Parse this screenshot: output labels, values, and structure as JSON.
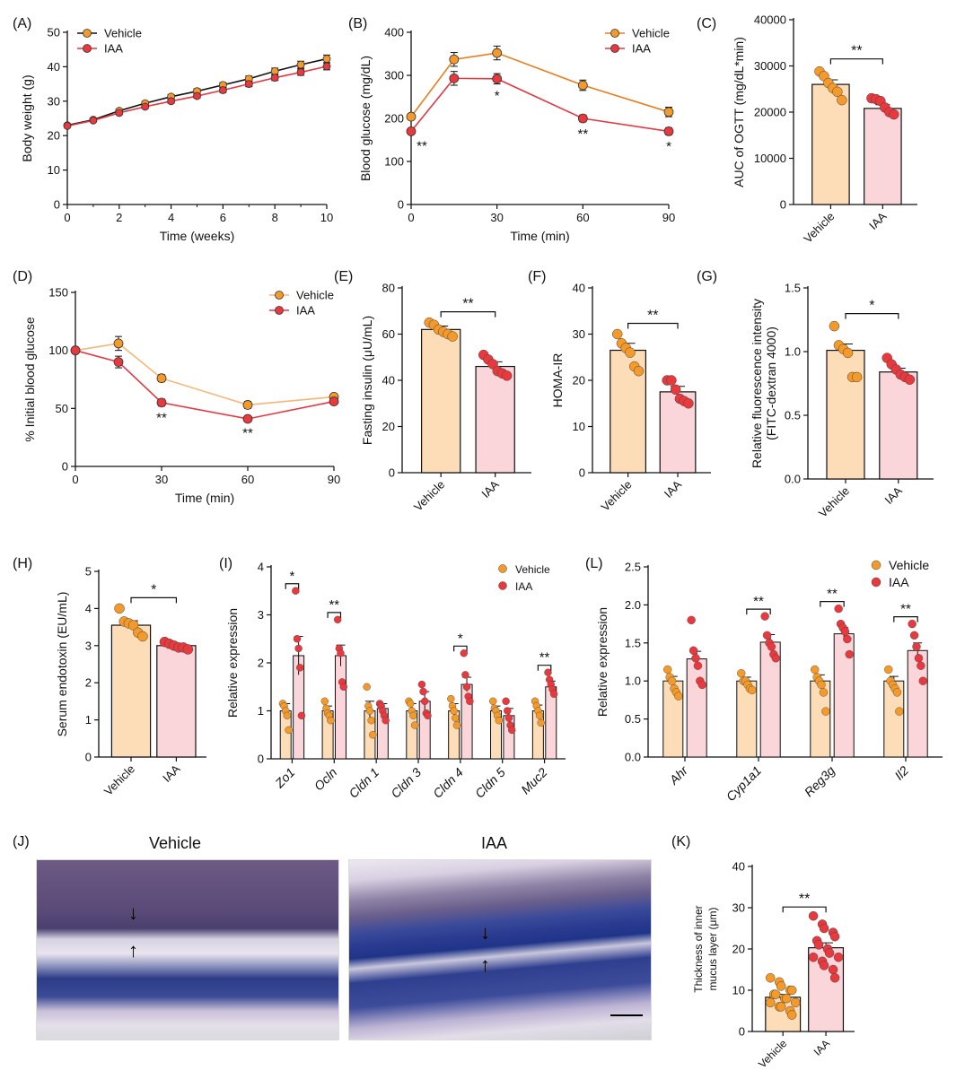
{
  "colors": {
    "vehicle_line": "#E87E1E",
    "vehicle_marker": "#F39A2B",
    "vehicle_bar": "#FDDCB8",
    "iaa_line": "#E03A45",
    "iaa_marker": "#E8393F",
    "iaa_bar": "#FAD6DA",
    "black": "#111111"
  },
  "legend": {
    "vehicle": "Vehicle",
    "iaa": "IAA"
  },
  "groups": {
    "vehicle": "Vehicle",
    "iaa": "IAA"
  },
  "panels": {
    "A": "(A)",
    "B": "(B)",
    "C": "(C)",
    "D": "(D)",
    "E": "(E)",
    "F": "(F)",
    "G": "(G)",
    "H": "(H)",
    "I": "(I)",
    "L": "(L)",
    "J": "(J)",
    "K": "(K)"
  },
  "histology": {
    "vehicle_title": "Vehicle",
    "iaa_title": "IAA"
  },
  "chart_data": [
    {
      "id": "A",
      "type": "line",
      "xlabel": "Time (weeks)",
      "ylabel": "Body weight (g)",
      "xlim": [
        0,
        10
      ],
      "ylim": [
        0,
        50
      ],
      "xticks": [
        0,
        2,
        4,
        6,
        8,
        10
      ],
      "yticks": [
        0,
        10,
        20,
        30,
        40,
        50
      ],
      "series": [
        {
          "name": "Vehicle",
          "x": [
            0,
            1,
            2,
            3,
            4,
            5,
            6,
            7,
            8,
            9,
            10
          ],
          "y": [
            23,
            24.6,
            27.2,
            29.4,
            31.3,
            32.9,
            34.7,
            36.5,
            38.7,
            40.6,
            42.3
          ],
          "err": [
            0.4,
            0.4,
            0.5,
            0.5,
            0.6,
            0.7,
            0.7,
            0.8,
            0.9,
            1.0,
            1.1
          ]
        },
        {
          "name": "IAA",
          "x": [
            0,
            1,
            2,
            3,
            4,
            5,
            6,
            7,
            8,
            9,
            10
          ],
          "y": [
            22.8,
            24.4,
            26.6,
            28.4,
            30,
            31.5,
            33.2,
            35,
            36.8,
            38.4,
            40.1
          ],
          "err": [
            0.4,
            0.4,
            0.5,
            0.5,
            0.6,
            0.6,
            0.7,
            0.8,
            0.8,
            0.9,
            1.0
          ]
        }
      ]
    },
    {
      "id": "B",
      "type": "line",
      "xlabel": "Time (min)",
      "ylabel": "Blood glucose (mg/dL)",
      "xlim": [
        0,
        90
      ],
      "ylim": [
        0,
        400
      ],
      "xticks": [
        0,
        30,
        60,
        90
      ],
      "yticks": [
        0,
        100,
        200,
        300,
        400
      ],
      "series": [
        {
          "name": "Vehicle",
          "x": [
            0,
            15,
            30,
            60,
            90
          ],
          "y": [
            204,
            337,
            352,
            277,
            215
          ],
          "err": [
            6,
            16,
            16,
            12,
            11
          ]
        },
        {
          "name": "IAA",
          "x": [
            0,
            15,
            30,
            60,
            90
          ],
          "y": [
            170,
            293,
            292,
            200,
            170
          ],
          "err": [
            6,
            16,
            12,
            8,
            8
          ]
        }
      ],
      "significance": [
        {
          "x": 0,
          "label": "**"
        },
        {
          "x": 30,
          "label": "*"
        },
        {
          "x": 60,
          "label": "**"
        },
        {
          "x": 90,
          "label": "*"
        }
      ]
    },
    {
      "id": "C",
      "type": "bar",
      "ylabel": "AUC of OGTT (mg/dL*min)",
      "ylim": [
        0,
        40000
      ],
      "yticks": [
        0,
        10000,
        20000,
        30000,
        40000
      ],
      "categories": [
        "Vehicle",
        "IAA"
      ],
      "values": [
        26000,
        20800
      ],
      "err": [
        1000,
        800
      ],
      "points": [
        [
          28800,
          27800,
          26300,
          25200,
          24400,
          22600
        ],
        [
          23000,
          22800,
          22400,
          21000,
          20000,
          19500
        ]
      ],
      "significance": "**"
    },
    {
      "id": "D",
      "type": "line",
      "xlabel": "Time (min)",
      "ylabel": "% Initial blood glucose",
      "xlim": [
        0,
        90
      ],
      "ylim": [
        0,
        150
      ],
      "xticks": [
        0,
        30,
        60,
        90
      ],
      "yticks": [
        0,
        50,
        100,
        150
      ],
      "series": [
        {
          "name": "Vehicle",
          "x": [
            0,
            15,
            30,
            60,
            90
          ],
          "y": [
            100,
            106,
            76,
            53,
            60
          ],
          "err": [
            0,
            6,
            3,
            3,
            2
          ]
        },
        {
          "name": "IAA",
          "x": [
            0,
            15,
            30,
            60,
            90
          ],
          "y": [
            100,
            90,
            55,
            41,
            56
          ],
          "err": [
            0,
            5,
            3,
            2,
            2
          ]
        }
      ],
      "significance": [
        {
          "x": 30,
          "label": "**"
        },
        {
          "x": 60,
          "label": "**"
        }
      ]
    },
    {
      "id": "E",
      "type": "bar",
      "ylabel": "Fasting insulin (μU/mL)",
      "ylim": [
        0,
        80
      ],
      "yticks": [
        0,
        20,
        40,
        60,
        80
      ],
      "categories": [
        "Vehicle",
        "IAA"
      ],
      "values": [
        62,
        46
      ],
      "err": [
        1.5,
        2
      ],
      "points": [
        [
          65,
          64,
          62,
          61,
          60,
          59
        ],
        [
          51,
          49,
          47,
          44,
          43,
          42
        ]
      ],
      "significance": "**"
    },
    {
      "id": "F",
      "type": "bar",
      "ylabel": "HOMA-IR",
      "ylim": [
        0,
        40
      ],
      "yticks": [
        0,
        10,
        20,
        30,
        40
      ],
      "categories": [
        "Vehicle",
        "IAA"
      ],
      "values": [
        26.5,
        17.5
      ],
      "err": [
        1.5,
        1.2
      ],
      "points": [
        [
          30,
          28,
          27,
          26,
          23,
          22
        ],
        [
          20,
          20,
          18,
          16,
          15.5,
          15
        ]
      ],
      "significance": "**"
    },
    {
      "id": "G",
      "type": "bar",
      "ylabel": "Relative fluorescence intensity",
      "ylabel2": "(FITC-dextran 4000)",
      "ylim": [
        0,
        1.5
      ],
      "yticks": [
        0.0,
        0.5,
        1.0,
        1.5
      ],
      "categories": [
        "Vehicle",
        "IAA"
      ],
      "values": [
        1.01,
        0.84
      ],
      "err": [
        0.05,
        0.03
      ],
      "points": [
        [
          1.2,
          1.05,
          1.02,
          0.99,
          0.8,
          0.8
        ],
        [
          0.95,
          0.9,
          0.86,
          0.82,
          0.8,
          0.78
        ]
      ],
      "significance": "*"
    },
    {
      "id": "H",
      "type": "bar",
      "ylabel": "Serum endotoxin (EU/mL)",
      "ylim": [
        0,
        5
      ],
      "yticks": [
        0,
        1,
        2,
        3,
        4,
        5
      ],
      "categories": [
        "Vehicle",
        "IAA"
      ],
      "values": [
        3.55,
        3.0
      ],
      "err": [
        0.12,
        0.06
      ],
      "points": [
        [
          4.0,
          3.65,
          3.6,
          3.55,
          3.35,
          3.25
        ],
        [
          3.1,
          3.05,
          3.0,
          2.95,
          2.95,
          2.9
        ]
      ],
      "significance": "*"
    },
    {
      "id": "I",
      "type": "bar",
      "ylabel": "Relative expression",
      "ylim": [
        0,
        4
      ],
      "yticks": [
        0,
        1,
        2,
        3,
        4
      ],
      "categories": [
        "Zo1",
        "Ocln",
        "Cldn 1",
        "Cldn 3",
        "Cldn 4",
        "Cldn 5",
        "Muc2"
      ],
      "series": [
        {
          "name": "Vehicle",
          "values": [
            1,
            1,
            1,
            1,
            1,
            1,
            1
          ],
          "err": [
            0.15,
            0.1,
            0.2,
            0.15,
            0.15,
            0.1,
            0.12
          ],
          "points": [
            [
              1.15,
              1.1,
              1.0,
              0.9,
              0.6
            ],
            [
              1.2,
              1.05,
              0.95,
              0.9,
              0.8
            ],
            [
              1.5,
              1.1,
              1.0,
              0.8,
              0.5
            ],
            [
              1.2,
              1.15,
              1.0,
              0.9,
              0.7
            ],
            [
              1.25,
              1.1,
              1.0,
              0.85,
              0.7
            ],
            [
              1.2,
              1.05,
              1.0,
              0.9,
              0.8
            ],
            [
              1.2,
              1.1,
              1.0,
              0.9,
              0.75
            ]
          ]
        },
        {
          "name": "IAA",
          "values": [
            2.15,
            2.15,
            1.05,
            1.2,
            1.55,
            0.9,
            1.5
          ],
          "err": [
            0.4,
            0.22,
            0.1,
            0.2,
            0.15,
            0.15,
            0.12
          ],
          "points": [
            [
              3.5,
              2.5,
              2.3,
              1.9,
              0.9
            ],
            [
              2.9,
              2.3,
              2.2,
              1.6,
              1.5
            ],
            [
              1.15,
              1.1,
              1.0,
              0.9,
              0.8
            ],
            [
              1.55,
              1.4,
              1.2,
              0.95,
              0.9
            ],
            [
              2.2,
              1.75,
              1.5,
              1.3,
              1.2
            ],
            [
              1.2,
              1.0,
              0.85,
              0.7,
              0.6
            ],
            [
              1.8,
              1.65,
              1.55,
              1.45,
              1.35
            ]
          ]
        }
      ],
      "significance": [
        {
          "index": 0,
          "label": "*"
        },
        {
          "index": 1,
          "label": "**"
        },
        {
          "index": 4,
          "label": "*"
        },
        {
          "index": 6,
          "label": "**"
        }
      ]
    },
    {
      "id": "L",
      "type": "bar",
      "ylabel": "Relative expression",
      "ylim": [
        0,
        2.5
      ],
      "yticks": [
        0.0,
        0.5,
        1.0,
        1.5,
        2.0,
        2.5
      ],
      "categories": [
        "Ahr",
        "Cyp1a1",
        "Reg3g",
        "Il2"
      ],
      "series": [
        {
          "name": "Vehicle",
          "values": [
            1,
            1,
            1,
            1
          ],
          "err": [
            0.06,
            0.05,
            0.08,
            0.06
          ],
          "points": [
            [
              1.15,
              1.05,
              1.0,
              0.9,
              0.85,
              0.8
            ],
            [
              1.1,
              1.0,
              1.0,
              0.95,
              0.9,
              0.88
            ],
            [
              1.15,
              1.05,
              1.0,
              0.95,
              0.85,
              0.6
            ],
            [
              1.15,
              1.0,
              0.95,
              0.9,
              0.85,
              0.6
            ]
          ]
        },
        {
          "name": "IAA",
          "values": [
            1.29,
            1.51,
            1.62,
            1.4
          ],
          "err": [
            0.1,
            0.1,
            0.08,
            0.1
          ],
          "points": [
            [
              1.8,
              1.4,
              1.3,
              1.2,
              1.0,
              0.95
            ],
            [
              1.85,
              1.6,
              1.5,
              1.45,
              1.35,
              1.3
            ],
            [
              1.95,
              1.75,
              1.7,
              1.65,
              1.55,
              1.35
            ],
            [
              1.75,
              1.6,
              1.45,
              1.3,
              1.2,
              1.0
            ]
          ]
        }
      ],
      "significance": [
        {
          "index": 1,
          "label": "**"
        },
        {
          "index": 2,
          "label": "**"
        },
        {
          "index": 3,
          "label": "**"
        }
      ]
    },
    {
      "id": "K",
      "type": "bar",
      "ylabel": "Thickness of inner",
      "ylabel2": "mucus layer (μm)",
      "ylim": [
        0,
        40
      ],
      "yticks": [
        0,
        10,
        20,
        30,
        40
      ],
      "categories": [
        "Vehicle",
        "IAA"
      ],
      "values": [
        8.3,
        20.3
      ],
      "err": [
        0.7,
        1.2
      ],
      "points": [
        [
          13,
          12,
          11,
          10,
          10,
          9,
          9,
          8,
          8,
          7,
          7,
          6,
          6,
          5,
          4
        ],
        [
          28,
          26,
          25,
          24,
          23,
          22,
          21,
          20,
          19,
          18,
          18,
          17,
          16,
          15,
          13
        ]
      ],
      "significance": "**"
    }
  ]
}
